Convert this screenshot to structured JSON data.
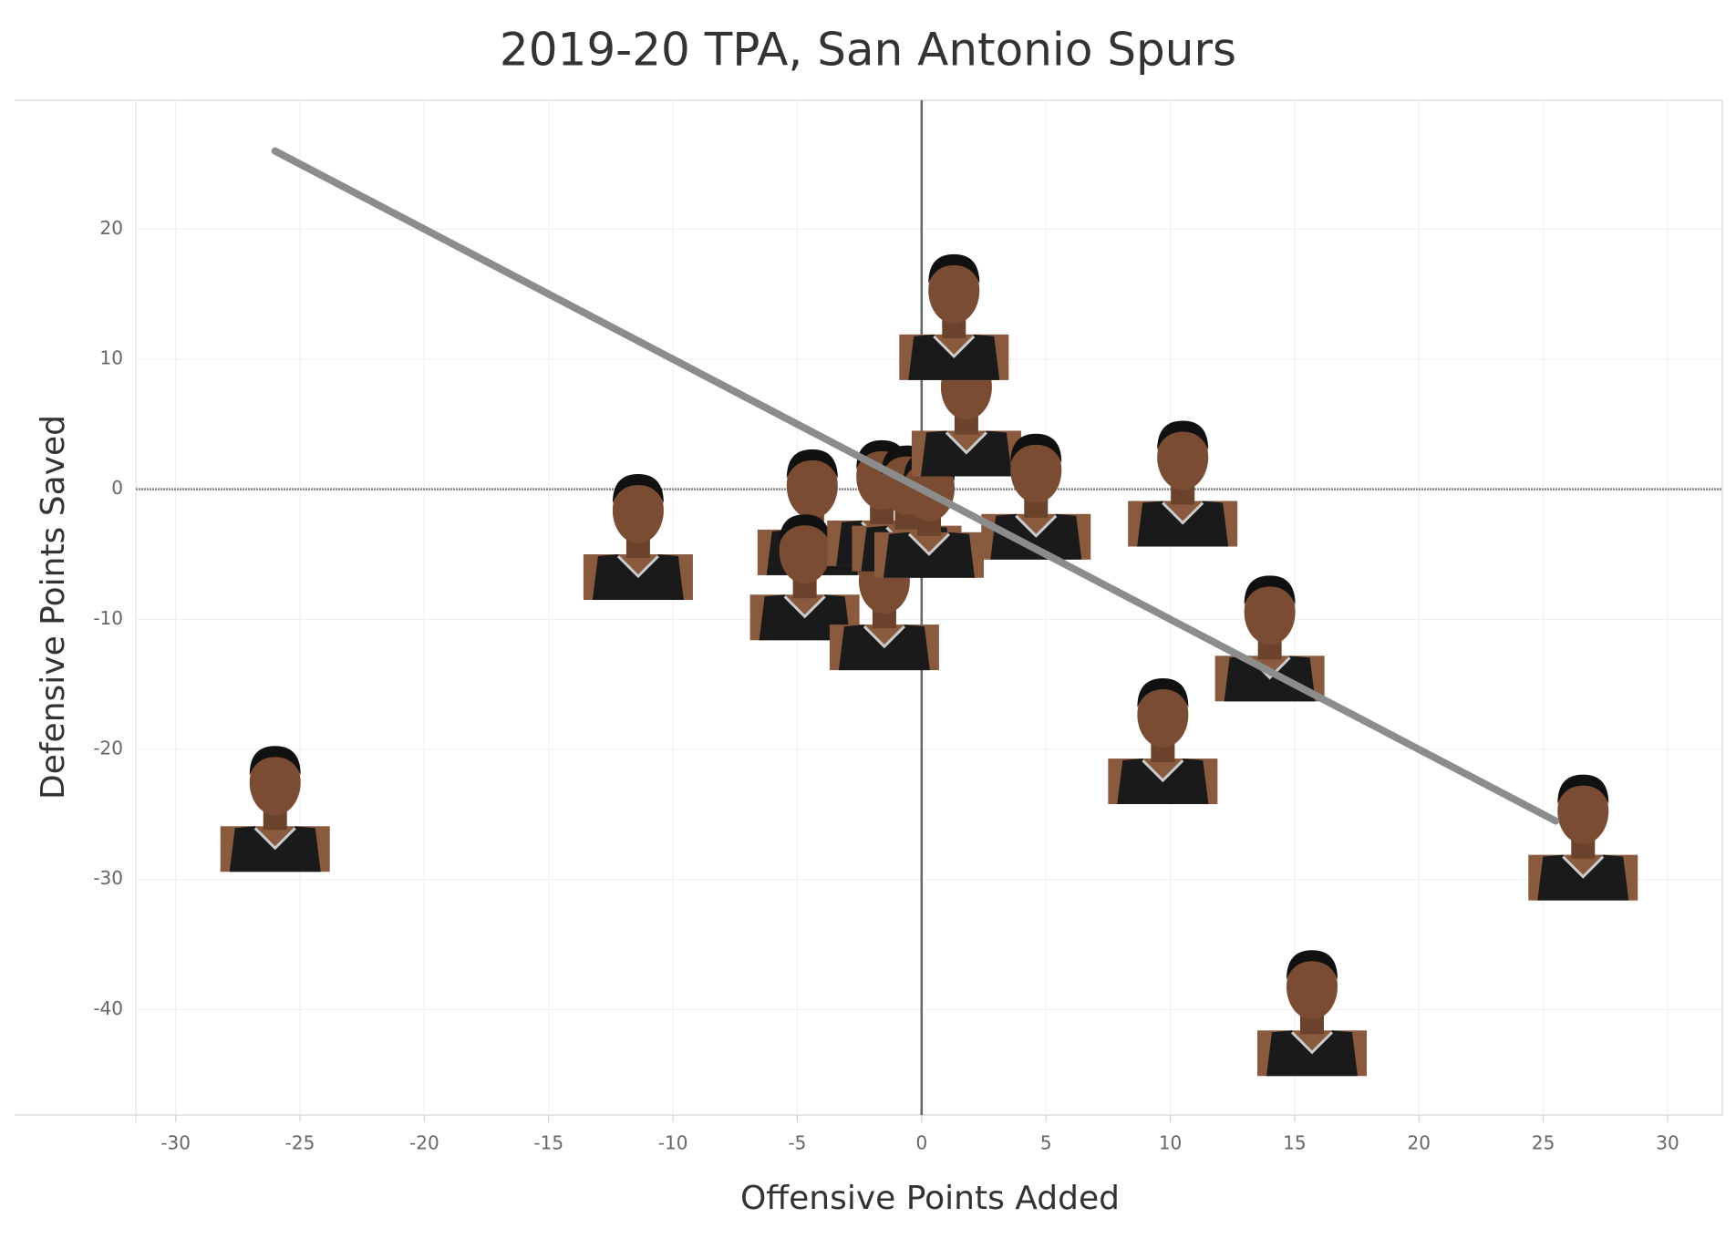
{
  "chart_data": {
    "type": "scatter",
    "title": "2019-20 TPA, San Antonio Spurs",
    "x_label": "Offensive Points Added",
    "y_label": "Defensive Points Saved",
    "series": [
      {
        "x": [
          -26.0,
          -11.4,
          -4.4,
          -4.7,
          -1.5,
          -1.6,
          -0.6,
          0.3,
          1.8,
          1.3,
          4.6,
          10.5,
          14.0,
          9.7,
          26.6,
          15.7
        ],
        "values": [
          -23.8,
          -2.9,
          -1.0,
          -6.0,
          -8.3,
          -0.3,
          -0.7,
          -1.2,
          6.6,
          14.0,
          0.2,
          1.2,
          -10.7,
          -18.6,
          -26.0,
          -39.5
        ]
      }
    ],
    "trendline": {
      "x": [
        -26,
        25.5
      ],
      "y": [
        26,
        -25.5
      ],
      "color": "#8c8c8c"
    },
    "xlim": [
      -31.6,
      32.2
    ],
    "ylim": [
      -48.1,
      29.9
    ],
    "xticks": [
      -30,
      -25,
      -20,
      -15,
      -10,
      -5,
      0,
      5,
      10,
      15,
      20,
      25,
      30
    ],
    "yticks": [
      -40,
      -30,
      -20,
      -10,
      0,
      10,
      20
    ],
    "grid": true,
    "zero_lines": true
  }
}
